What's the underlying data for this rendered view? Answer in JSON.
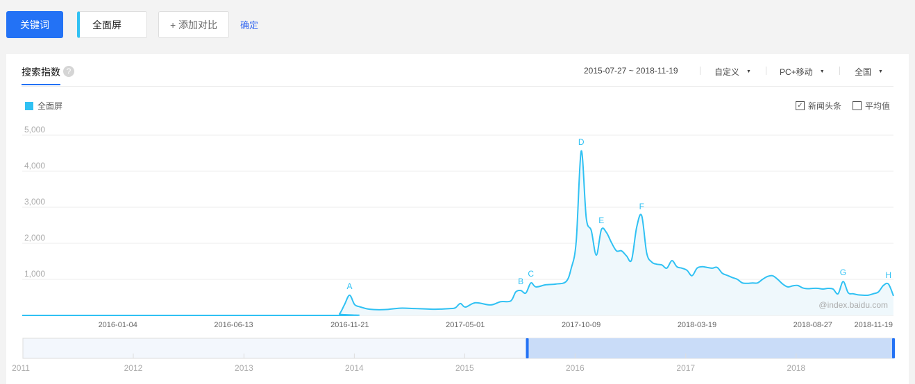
{
  "toolbar": {
    "keyword_label": "关键词",
    "term": "全面屏",
    "add_compare": "+ 添加对比",
    "confirm": "确定"
  },
  "panel": {
    "tab": "搜索指数",
    "help": "?",
    "date_range": "2015-07-27 ~ 2018-11-19",
    "period": "自定义",
    "device": "PC+移动",
    "region": "全国",
    "legend": "全面屏",
    "news_label": "新闻头条",
    "news_checked": true,
    "avg_label": "平均值",
    "avg_checked": false,
    "watermark": "@index.baidu.com"
  },
  "colors": {
    "accent": "#2372f5",
    "series": "#30c1f3"
  },
  "chart_data": {
    "type": "area",
    "ylim": [
      0,
      5000
    ],
    "yticks": [
      "1,000",
      "2,000",
      "3,000",
      "4,000",
      "5,000"
    ],
    "ytick_values": [
      1000,
      2000,
      3000,
      4000,
      5000
    ],
    "xlim": [
      "2015-07-27",
      "2018-11-19"
    ],
    "xticks": [
      "2016-01-04",
      "2016-06-13",
      "2016-11-21",
      "2017-05-01",
      "2017-10-09",
      "2018-03-19",
      "2018-08-27",
      "2018-11-19"
    ],
    "grid": true,
    "legend": "top-left",
    "series": [
      {
        "name": "全面屏",
        "points": [
          [
            "2015-07-27",
            0
          ],
          [
            "2016-10-03",
            0
          ],
          [
            "2016-10-10",
            40
          ],
          [
            "2016-10-17",
            300
          ],
          [
            "2016-10-24",
            560
          ],
          [
            "2016-10-31",
            300
          ],
          [
            "2016-11-07",
            240
          ],
          [
            "2016-11-21",
            170
          ],
          [
            "2016-12-12",
            160
          ],
          [
            "2017-01-02",
            200
          ],
          [
            "2017-01-23",
            190
          ],
          [
            "2017-02-20",
            170
          ],
          [
            "2017-03-13",
            190
          ],
          [
            "2017-03-20",
            210
          ],
          [
            "2017-03-27",
            330
          ],
          [
            "2017-04-03",
            230
          ],
          [
            "2017-04-17",
            350
          ],
          [
            "2017-05-08",
            290
          ],
          [
            "2017-05-22",
            380
          ],
          [
            "2017-06-05",
            400
          ],
          [
            "2017-06-12",
            650
          ],
          [
            "2017-06-19",
            690
          ],
          [
            "2017-06-26",
            620
          ],
          [
            "2017-07-03",
            900
          ],
          [
            "2017-07-10",
            790
          ],
          [
            "2017-07-24",
            850
          ],
          [
            "2017-08-07",
            870
          ],
          [
            "2017-08-21",
            940
          ],
          [
            "2017-08-28",
            1300
          ],
          [
            "2017-09-04",
            2050
          ],
          [
            "2017-09-11",
            4560
          ],
          [
            "2017-09-18",
            2700
          ],
          [
            "2017-09-25",
            2350
          ],
          [
            "2017-10-02",
            1670
          ],
          [
            "2017-10-09",
            2380
          ],
          [
            "2017-10-16",
            2300
          ],
          [
            "2017-10-23",
            2020
          ],
          [
            "2017-10-30",
            1790
          ],
          [
            "2017-11-06",
            1790
          ],
          [
            "2017-11-13",
            1650
          ],
          [
            "2017-11-20",
            1540
          ],
          [
            "2017-11-27",
            2440
          ],
          [
            "2017-12-04",
            2770
          ],
          [
            "2017-12-11",
            1730
          ],
          [
            "2017-12-18",
            1480
          ],
          [
            "2017-12-25",
            1420
          ],
          [
            "2018-01-01",
            1400
          ],
          [
            "2018-01-08",
            1310
          ],
          [
            "2018-01-15",
            1520
          ],
          [
            "2018-01-22",
            1350
          ],
          [
            "2018-01-29",
            1310
          ],
          [
            "2018-02-05",
            1250
          ],
          [
            "2018-02-12",
            1100
          ],
          [
            "2018-02-19",
            1310
          ],
          [
            "2018-02-26",
            1350
          ],
          [
            "2018-03-05",
            1330
          ],
          [
            "2018-03-12",
            1310
          ],
          [
            "2018-03-19",
            1330
          ],
          [
            "2018-03-26",
            1170
          ],
          [
            "2018-04-02",
            1110
          ],
          [
            "2018-04-09",
            1050
          ],
          [
            "2018-04-16",
            1000
          ],
          [
            "2018-04-23",
            900
          ],
          [
            "2018-04-30",
            890
          ],
          [
            "2018-05-07",
            900
          ],
          [
            "2018-05-14",
            900
          ],
          [
            "2018-05-21",
            1000
          ],
          [
            "2018-05-28",
            1080
          ],
          [
            "2018-06-04",
            1100
          ],
          [
            "2018-06-11",
            1000
          ],
          [
            "2018-06-18",
            870
          ],
          [
            "2018-06-25",
            790
          ],
          [
            "2018-07-02",
            820
          ],
          [
            "2018-07-09",
            830
          ],
          [
            "2018-07-16",
            760
          ],
          [
            "2018-07-23",
            740
          ],
          [
            "2018-07-30",
            750
          ],
          [
            "2018-08-06",
            750
          ],
          [
            "2018-08-13",
            730
          ],
          [
            "2018-08-20",
            750
          ],
          [
            "2018-08-27",
            730
          ],
          [
            "2018-09-03",
            600
          ],
          [
            "2018-09-10",
            940
          ],
          [
            "2018-09-17",
            630
          ],
          [
            "2018-09-24",
            600
          ],
          [
            "2018-10-01",
            570
          ],
          [
            "2018-10-08",
            560
          ],
          [
            "2018-10-15",
            560
          ],
          [
            "2018-10-22",
            600
          ],
          [
            "2018-10-29",
            650
          ],
          [
            "2018-11-05",
            830
          ],
          [
            "2018-11-12",
            870
          ],
          [
            "2018-11-19",
            540
          ]
        ]
      }
    ],
    "annotations": [
      {
        "label": "A",
        "date": "2016-10-24"
      },
      {
        "label": "B",
        "date": "2017-06-19"
      },
      {
        "label": "C",
        "date": "2017-07-03"
      },
      {
        "label": "D",
        "date": "2017-09-11"
      },
      {
        "label": "E",
        "date": "2017-10-09"
      },
      {
        "label": "F",
        "date": "2017-12-04"
      },
      {
        "label": "G",
        "date": "2018-09-10"
      },
      {
        "label": "H",
        "date": "2018-11-12"
      }
    ],
    "navigator": {
      "years": [
        "2011",
        "2012",
        "2013",
        "2014",
        "2015",
        "2016",
        "2017",
        "2018"
      ],
      "range": [
        "2011-01-01",
        "2018-11-19"
      ],
      "selected": [
        "2015-07-27",
        "2018-11-19"
      ]
    }
  }
}
